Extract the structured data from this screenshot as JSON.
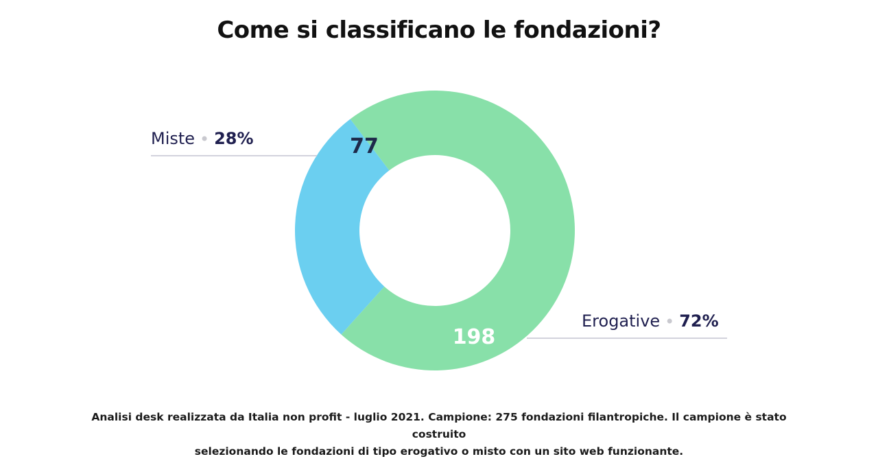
{
  "title": "Come si classificano le fondazioni?",
  "chart_data": {
    "type": "pie",
    "variant": "donut",
    "title": "Come si classificano le fondazioni?",
    "slices": [
      {
        "label": "Miste",
        "value": 77,
        "percent": "28%",
        "color": "#6BCFF0",
        "value_text_color": "#1e2a4a"
      },
      {
        "label": "Erogative",
        "value": 198,
        "percent": "72%",
        "color": "#88E0A9",
        "value_text_color": "#ffffff"
      }
    ]
  },
  "colors": {
    "label_text": "#1f1f4f",
    "leader_line": "#d2d2dc",
    "separator_dot": "#c9c9cf"
  },
  "footnote": {
    "line1": "Analisi desk realizzata da Italia non profit - luglio 2021. Campione: 275 fondazioni filantropiche. Il campione è stato costruito",
    "line2": "selezionando le fondazioni di tipo erogativo o misto con un sito web funzionante."
  }
}
